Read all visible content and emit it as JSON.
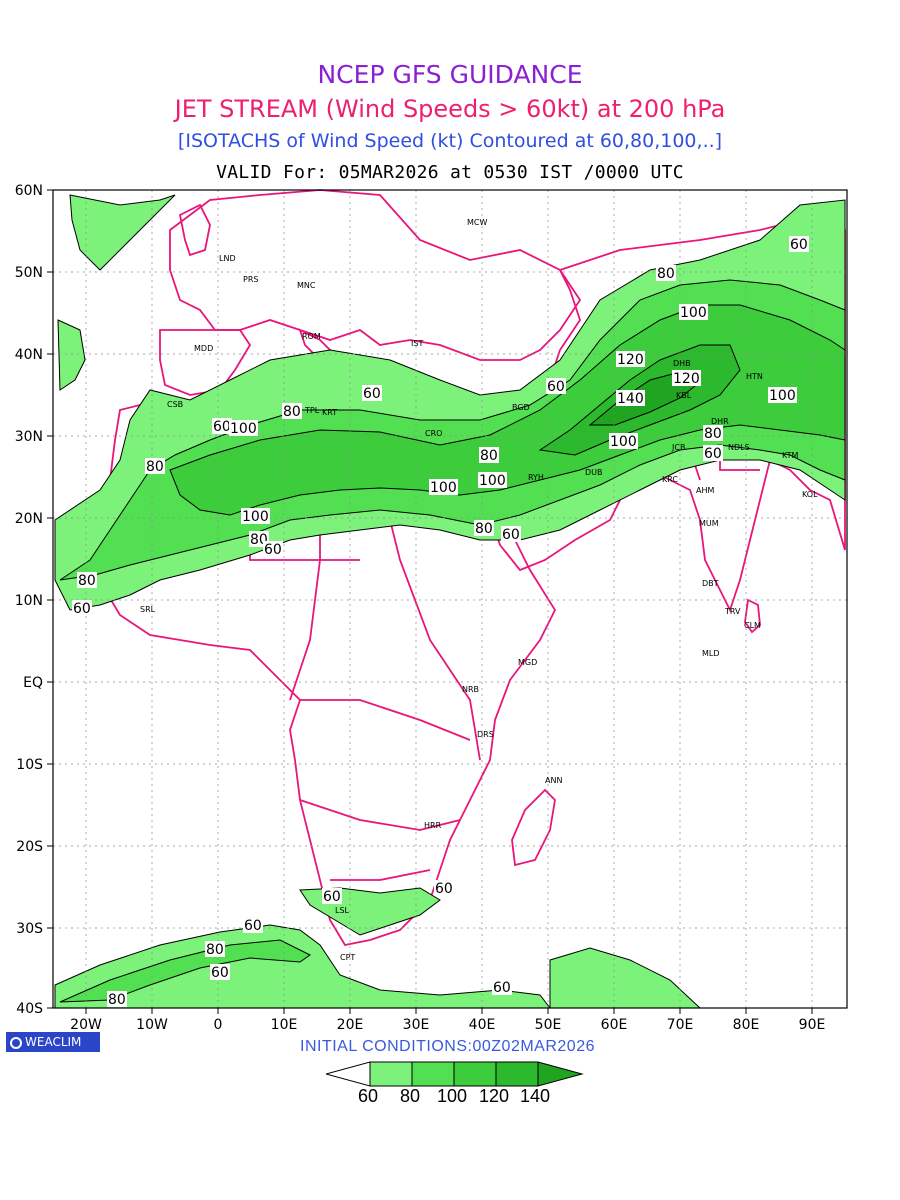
{
  "title": {
    "line1": "NCEP GFS GUIDANCE",
    "line2": "JET STREAM (Wind Speeds > 60kt) at 200 hPa",
    "line3": "[ISOTACHS of Wind Speed (kt) Contoured at 60,80,100,..]",
    "line4": "VALID For: 05MAR2026 at 0530 IST /0000 UTC"
  },
  "axes": {
    "lat_labels": [
      "60N",
      "50N",
      "40N",
      "30N",
      "20N",
      "10N",
      "EQ",
      "10S",
      "20S",
      "30S",
      "40S"
    ],
    "lon_labels": [
      "20W",
      "10W",
      "0",
      "10E",
      "20E",
      "30E",
      "40E",
      "50E",
      "60E",
      "70E",
      "80E",
      "90E"
    ]
  },
  "stations": [
    "MCW",
    "LND",
    "PRS",
    "MNC",
    "ROM",
    "IST",
    "MDD",
    "CSB",
    "TPL",
    "KRT",
    "CRO",
    "BGD",
    "RYH",
    "DUB",
    "DHB",
    "HTN",
    "KBL",
    "DHR",
    "NDLS",
    "KTM",
    "JCB",
    "KRC",
    "AHM",
    "MUM",
    "KOL",
    "DBT",
    "TRV",
    "CLM",
    "MLD",
    "SRL",
    "MGD",
    "NRB",
    "DRS",
    "ANN",
    "HRR",
    "LSL",
    "CPT"
  ],
  "contour_labels": [
    "60",
    "80",
    "100",
    "120",
    "140"
  ],
  "colors": {
    "k60": "#7cf27a",
    "k80": "#52e052",
    "k100": "#3ccc3c",
    "k120": "#2db92d",
    "k140": "#1fa51f",
    "coast": "#e8157a"
  },
  "footer": {
    "brand": "WEACLIM",
    "initial": "INITIAL CONDITIONS:00Z02MAR2026"
  },
  "legend": {
    "labels": [
      "60",
      "80",
      "100",
      "120",
      "140"
    ]
  }
}
